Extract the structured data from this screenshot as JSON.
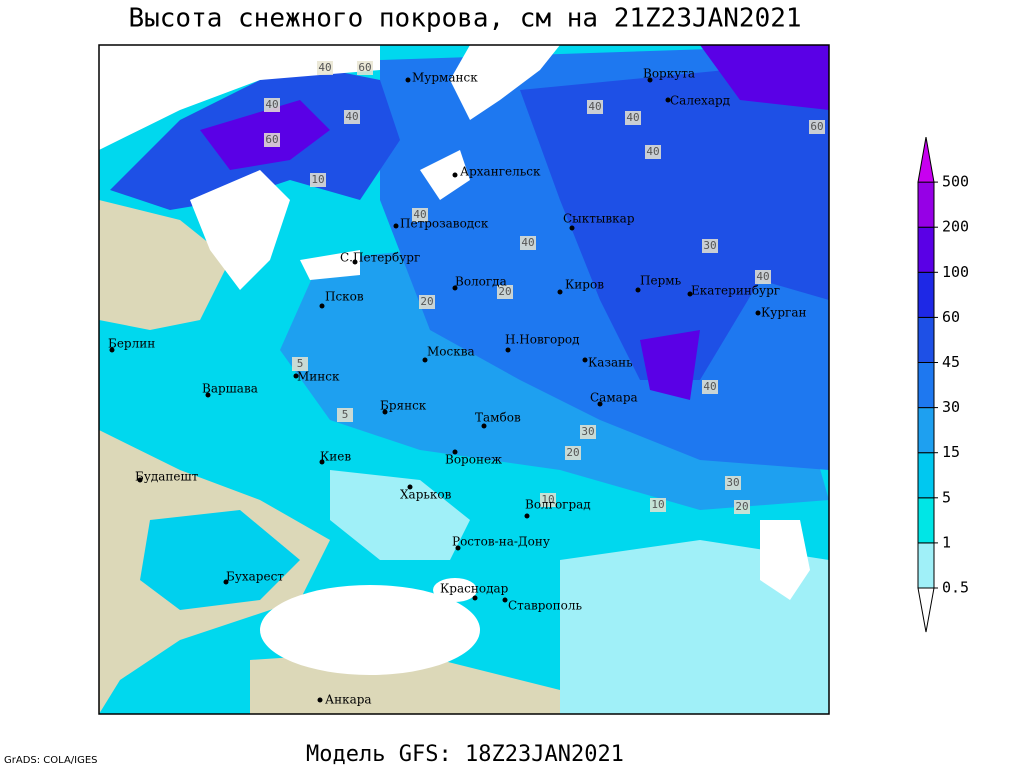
{
  "title": "Высота снежного покрова, см на 21Z23JAN2021",
  "subtitle": "Модель GFS: 18Z23JAN2021",
  "credit": "GrADS: COLA/IGES",
  "colorbar": {
    "levels": [
      0.5,
      1,
      5,
      15,
      30,
      45,
      60,
      100,
      200,
      500
    ],
    "colors": [
      "#ffffff",
      "#a0f0f8",
      "#00e6e6",
      "#00c8f0",
      "#1ea0f0",
      "#1e78f0",
      "#1e50e6",
      "#1e28e6",
      "#5a00e6",
      "#9600e6",
      "#c800f0"
    ]
  },
  "cities": [
    "Мурманск",
    "Воркута",
    "Салехард",
    "Архангельск",
    "Петрозаводск",
    "Сыктывкар",
    "С.Петербург",
    "Вологда",
    "Киров",
    "Пермь",
    "Екатеринбург",
    "Курган",
    "Псков",
    "Берлин",
    "Н.Новгород",
    "Москва",
    "Казань",
    "Минск",
    "Варшава",
    "Самара",
    "Брянск",
    "Тамбов",
    "Киев",
    "Воронеж",
    "Будапешт",
    "Харьков",
    "Волгоград",
    "Ростов-на-Дону",
    "Бухарест",
    "Краснодар",
    "Ставрополь",
    "Анкара"
  ],
  "contour_labels": [
    40,
    60,
    40,
    60,
    40,
    40,
    40,
    40,
    60,
    10,
    40,
    40,
    30,
    40,
    20,
    20,
    30,
    40,
    10,
    5,
    5,
    20,
    10,
    20,
    30
  ]
}
